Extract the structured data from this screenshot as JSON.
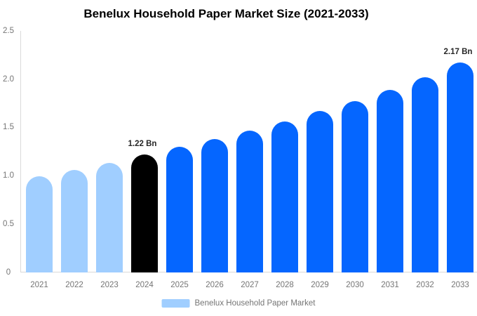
{
  "title": "Benelux Household Paper Market Size (2021-2033)",
  "legend": {
    "label": "Benelux Household Paper Market",
    "swatch_color": "#A0CEFF"
  },
  "colors": {
    "historical_bar": "#A0CEFF",
    "base_year_bar": "#000000",
    "forecast_bar": "#0566FF",
    "axis_line": "#D9D9D9",
    "tick_text": "#757575",
    "annotation_text": "#262626",
    "title_text": "#000000"
  },
  "chart_data": {
    "type": "bar",
    "title": "Benelux Household Paper Market Size (2021-2033)",
    "categories": [
      "2021",
      "2022",
      "2023",
      "2024",
      "2025",
      "2026",
      "2027",
      "2028",
      "2029",
      "2030",
      "2031",
      "2032",
      "2033"
    ],
    "values": [
      0.99,
      1.06,
      1.13,
      1.22,
      1.3,
      1.38,
      1.47,
      1.56,
      1.67,
      1.77,
      1.89,
      2.02,
      2.17
    ],
    "unit": "Bn",
    "series_name": "Benelux Household Paper Market",
    "bar_colors": [
      "#A0CEFF",
      "#A0CEFF",
      "#A0CEFF",
      "#000000",
      "#0566FF",
      "#0566FF",
      "#0566FF",
      "#0566FF",
      "#0566FF",
      "#0566FF",
      "#0566FF",
      "#0566FF",
      "#0566FF"
    ],
    "annotations": [
      {
        "category": "2024",
        "text": "1.22 Bn"
      },
      {
        "category": "2033",
        "text": "2.17 Bn"
      }
    ],
    "xlabel": "",
    "ylabel": "",
    "ylim": [
      0,
      2.5
    ],
    "ytick_labels": [
      "0",
      "0.5",
      "1.0",
      "1.5",
      "2.0",
      "2.5"
    ],
    "grid": false,
    "legend_position": "bottom"
  }
}
